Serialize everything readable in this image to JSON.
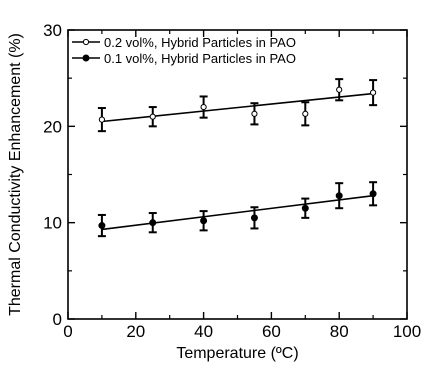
{
  "chart_data": {
    "type": "scatter",
    "xlabel": "Temperature (ºC)",
    "ylabel": "Thermal Conductivity Enhancement (%)",
    "xlim": [
      0,
      100
    ],
    "ylim": [
      0,
      30
    ],
    "x_ticks": [
      0,
      20,
      40,
      60,
      80,
      100
    ],
    "y_ticks": [
      0,
      10,
      20,
      30
    ],
    "grid": false,
    "legend_position": "top-left",
    "series": [
      {
        "name": "0.2 vol%, Hybrid Particles in PAO",
        "marker": "open-circle",
        "color": "#000000",
        "points": [
          {
            "x": 10,
            "y": 20.7,
            "err": 1.2
          },
          {
            "x": 25,
            "y": 21.0,
            "err": 1.0
          },
          {
            "x": 40,
            "y": 22.0,
            "err": 1.1
          },
          {
            "x": 55,
            "y": 21.3,
            "err": 1.1
          },
          {
            "x": 70,
            "y": 21.3,
            "err": 1.2
          },
          {
            "x": 80,
            "y": 23.8,
            "err": 1.1
          },
          {
            "x": 90,
            "y": 23.5,
            "err": 1.3
          }
        ],
        "fit_line": [
          [
            10,
            20.5
          ],
          [
            90,
            23.4
          ]
        ]
      },
      {
        "name": "0.1 vol%, Hybrid Particles in PAO",
        "marker": "filled-circle",
        "color": "#000000",
        "points": [
          {
            "x": 10,
            "y": 9.7,
            "err": 1.1
          },
          {
            "x": 25,
            "y": 10.0,
            "err": 1.0
          },
          {
            "x": 40,
            "y": 10.2,
            "err": 1.0
          },
          {
            "x": 55,
            "y": 10.5,
            "err": 1.1
          },
          {
            "x": 70,
            "y": 11.5,
            "err": 1.0
          },
          {
            "x": 80,
            "y": 12.8,
            "err": 1.3
          },
          {
            "x": 90,
            "y": 13.0,
            "err": 1.2
          }
        ],
        "fit_line": [
          [
            10,
            9.3
          ],
          [
            90,
            12.8
          ]
        ]
      }
    ]
  }
}
